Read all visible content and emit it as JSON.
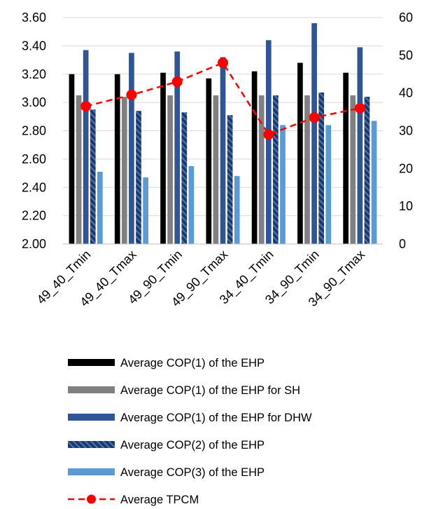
{
  "chart_data": {
    "type": "bar",
    "categories": [
      "49_40_Tmin",
      "49_40_Tmax",
      "49_90_Tmin",
      "49_90_Tmax",
      "34_40_Tmin",
      "34_90_Tmin",
      "34_90_Tmax"
    ],
    "series": [
      {
        "name": "Average COP(1) of the EHP",
        "axis": "left",
        "color": "#000000",
        "pattern": "solid",
        "values": [
          3.2,
          3.2,
          3.21,
          3.17,
          3.22,
          3.28,
          3.21
        ]
      },
      {
        "name": "Average COP(1) of the EHP for SH",
        "axis": "left",
        "color": "#808080",
        "pattern": "solid",
        "values": [
          3.05,
          3.04,
          3.05,
          3.05,
          3.05,
          3.05,
          3.05
        ]
      },
      {
        "name": "Average COP(1) of the EHP for DHW",
        "axis": "left",
        "color": "#2F5597",
        "pattern": "solid",
        "values": [
          3.37,
          3.35,
          3.36,
          3.32,
          3.44,
          3.56,
          3.39
        ]
      },
      {
        "name": "Average COP(2) of the EHP",
        "axis": "left",
        "color": "#1F3864",
        "pattern": "diagonal-stripes",
        "values": [
          2.95,
          2.94,
          2.93,
          2.91,
          3.05,
          3.07,
          3.04
        ]
      },
      {
        "name": "Average COP(3) of the EHP",
        "axis": "left",
        "color": "#5B9BD5",
        "pattern": "solid",
        "values": [
          2.51,
          2.47,
          2.55,
          2.48,
          2.84,
          2.84,
          2.87
        ]
      },
      {
        "name": "Average TPCM",
        "axis": "right",
        "type": "line",
        "color": "#FF0000",
        "line_style": "dashed",
        "marker": "circle",
        "values": [
          36.5,
          39.5,
          43,
          48,
          29,
          33.5,
          36
        ]
      }
    ],
    "y_left": {
      "min": 2.0,
      "max": 3.6,
      "ticks": [
        "2.00",
        "2.20",
        "2.40",
        "2.60",
        "2.80",
        "3.00",
        "3.20",
        "3.40",
        "3.60"
      ]
    },
    "y_right": {
      "min": 0,
      "max": 60,
      "ticks": [
        "0",
        "10",
        "20",
        "30",
        "40",
        "50",
        "60"
      ]
    },
    "grid": true,
    "legend_position": "bottom"
  }
}
